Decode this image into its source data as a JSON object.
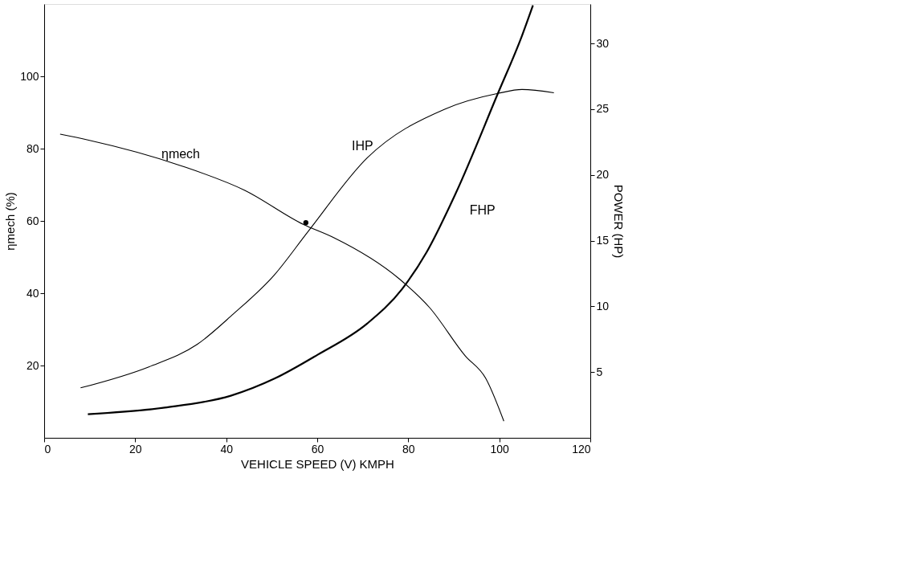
{
  "chart_data": {
    "type": "line",
    "xlabel": "VEHICLE SPEED (V) KMPH",
    "ylabel": "ηmech (%)",
    "y2label": "POWER (HP)",
    "xlim": [
      0,
      120
    ],
    "xticks": [
      0,
      20,
      40,
      60,
      80,
      100,
      120
    ],
    "ylim": [
      0,
      120
    ],
    "yticks": [
      20,
      40,
      60,
      80,
      100
    ],
    "y2lim": [
      0,
      33
    ],
    "y2ticks": [
      5,
      10,
      15,
      20,
      25,
      30
    ],
    "grid": false,
    "marker": "none",
    "line_style": "solid",
    "series": [
      {
        "name": "ηmech",
        "color": "#000000",
        "x": [
          3.5,
          9.6,
          30,
          44,
          57,
          63.6,
          78,
          84.7,
          92.5,
          97,
          101
        ],
        "values": [
          84,
          82.4,
          75.3,
          68.5,
          59,
          55.4,
          44,
          36,
          22.7,
          16.5,
          4.6
        ]
      },
      {
        "name": "IHP",
        "color": "#000000",
        "axis": "y2",
        "x": [
          8,
          23,
          33.6,
          41.5,
          50.6,
          58,
          71,
          88,
          99.7,
          105,
          112
        ],
        "values": [
          3.8,
          5.4,
          7.1,
          9.4,
          12.4,
          15.7,
          21.3,
          25,
          26.2,
          26.5,
          26.25
        ]
      },
      {
        "name": "FHP",
        "color": "#000000",
        "axis": "y2",
        "x": [
          9.6,
          26.5,
          41,
          50.6,
          60,
          71,
          78.6,
          84,
          90.3,
          99.7,
          105,
          107.4
        ],
        "values": [
          1.8,
          2.3,
          3.2,
          4.5,
          6.3,
          8.7,
          11.3,
          14.1,
          18.5,
          26.2,
          30.6,
          32.9
        ]
      },
      {
        "type": "scatter",
        "marker": "circle",
        "color": "#000000",
        "x": [
          57.5
        ],
        "values": [
          59.5
        ]
      }
    ]
  }
}
